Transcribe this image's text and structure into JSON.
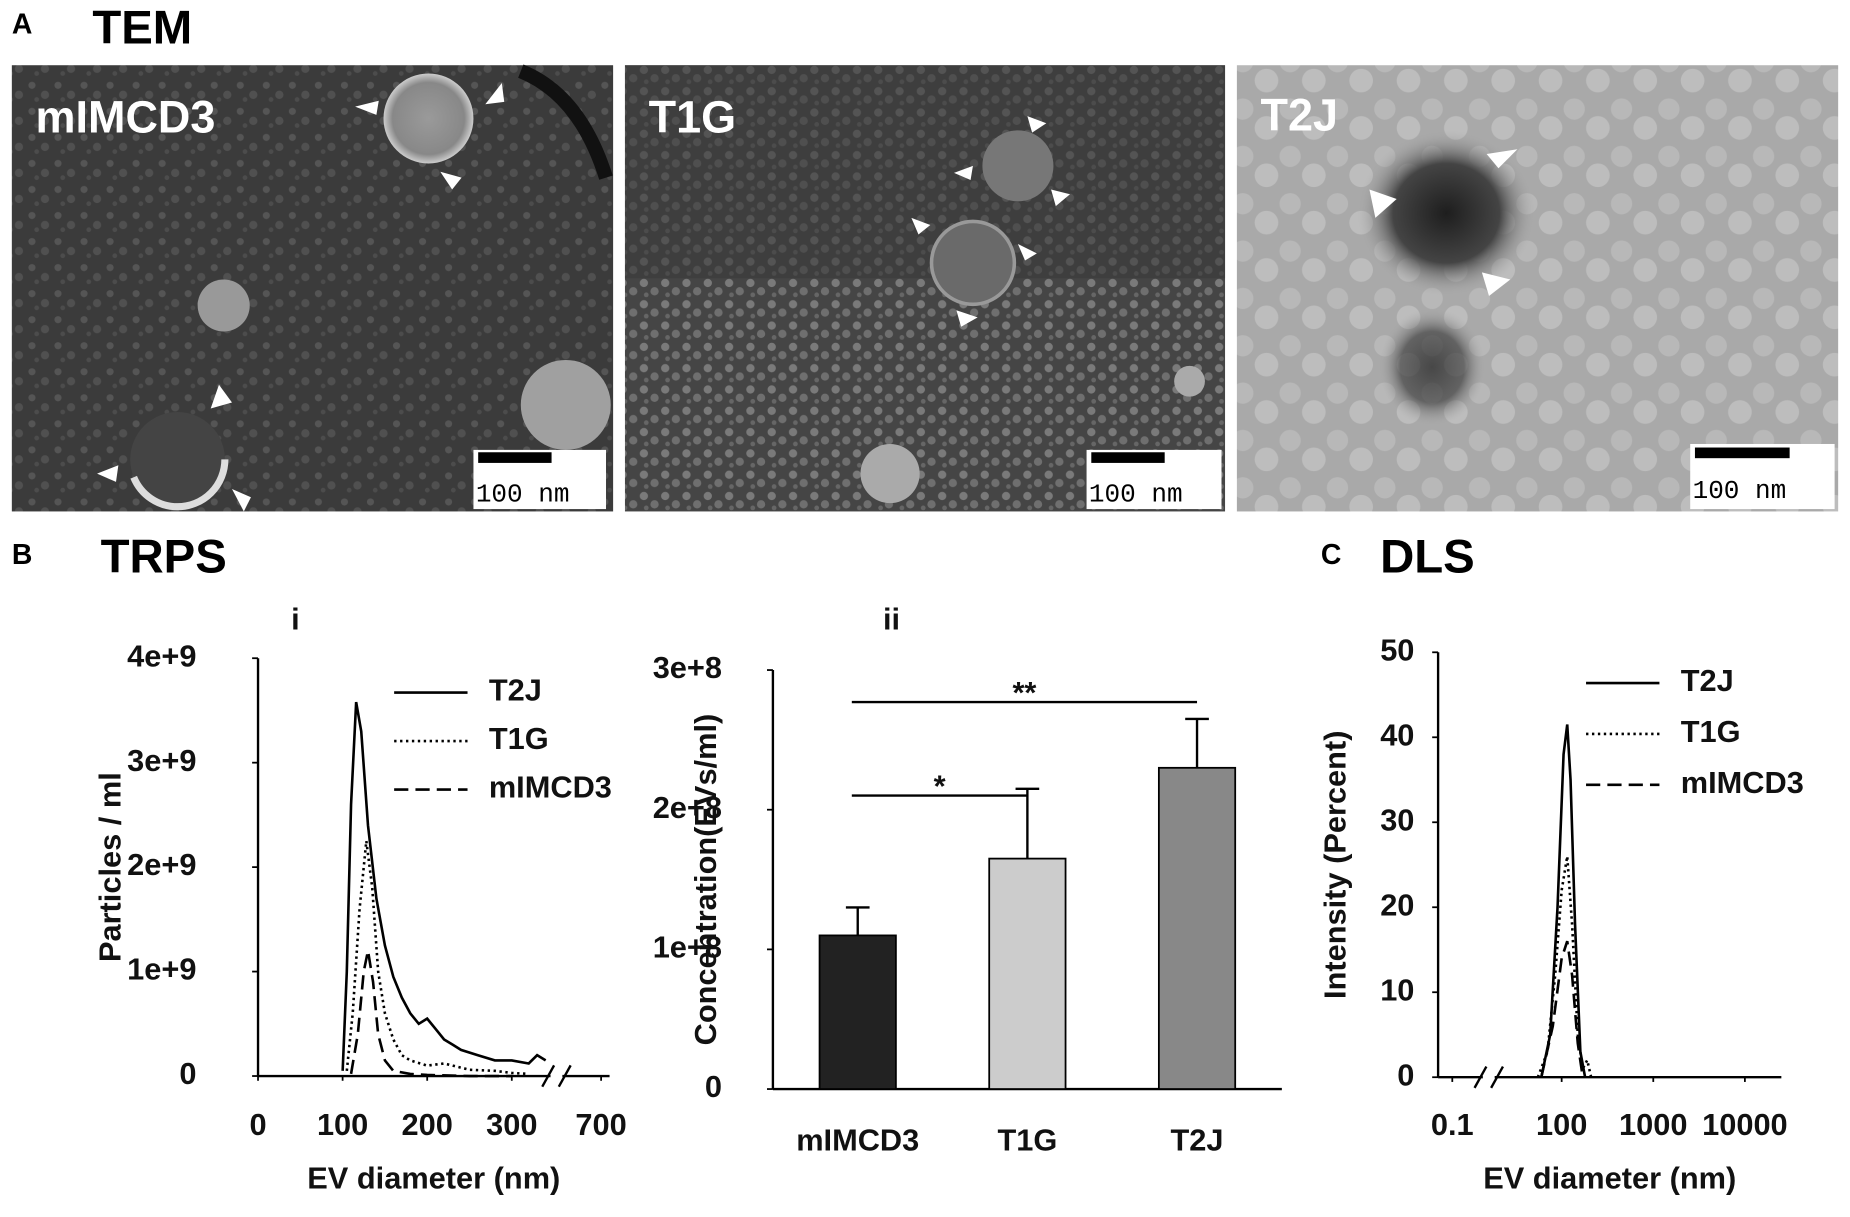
{
  "panels": {
    "a": {
      "letter": "A",
      "title": "TEM",
      "images": [
        {
          "label": "mIMCD3",
          "scale_bar": "100 nm"
        },
        {
          "label": "T1G",
          "scale_bar": "100 nm"
        },
        {
          "label": "T2J",
          "scale_bar": "100 nm"
        }
      ]
    },
    "b": {
      "letter": "B",
      "title": "TRPS"
    },
    "c": {
      "letter": "C",
      "title": "DLS"
    }
  },
  "chart_data": [
    {
      "type": "line",
      "label": "i",
      "x_label": "EV diameter (nm)",
      "y_label": "Particles / ml",
      "xlim": [
        0,
        710
      ],
      "x_break": [
        350,
        650
      ],
      "xticks": [
        0,
        100,
        200,
        300,
        700
      ],
      "ylim": [
        0,
        4000000000.0
      ],
      "yticks": [
        0,
        {
          "value": 1000000000.0,
          "label": "1e+9"
        },
        {
          "value": 2000000000.0,
          "label": "2e+9"
        },
        {
          "value": 3000000000.0,
          "label": "3e+9"
        },
        {
          "value": 4000000000.0,
          "label": "4e+9"
        }
      ],
      "legend": "upper right",
      "series": [
        {
          "name": "T2J",
          "color": "#000000",
          "dash": "solid",
          "x": [
            100,
            105,
            110,
            116,
            122,
            130,
            140,
            150,
            160,
            170,
            180,
            190,
            200,
            210,
            220,
            230,
            240,
            260,
            280,
            300,
            320,
            330,
            340
          ],
          "values": [
            50000000.0,
            1000000000.0,
            2600000000.0,
            3580000000.0,
            3300000000.0,
            2400000000.0,
            1700000000.0,
            1250000000.0,
            950000000.0,
            750000000.0,
            600000000.0,
            500000000.0,
            550000000.0,
            450000000.0,
            350000000.0,
            300000000.0,
            250000000.0,
            200000000.0,
            150000000.0,
            150000000.0,
            120000000.0,
            200000000.0,
            150000000.0
          ]
        },
        {
          "name": "T1G",
          "color": "#000000",
          "dash": "dotted",
          "x": [
            105,
            112,
            120,
            128,
            135,
            142,
            150,
            160,
            170,
            180,
            200,
            220,
            250,
            280,
            300,
            320
          ],
          "values": [
            50000000.0,
            600000000.0,
            1600000000.0,
            2250000000.0,
            1800000000.0,
            1000000000.0,
            600000000.0,
            350000000.0,
            200000000.0,
            150000000.0,
            100000000.0,
            120000000.0,
            60000000.0,
            50000000.0,
            30000000.0,
            20000000.0
          ]
        },
        {
          "name": "mIMCD3",
          "color": "#000000",
          "dash": "dashed",
          "x": [
            110,
            118,
            125,
            130,
            136,
            142,
            150,
            160,
            180,
            200,
            250,
            300
          ],
          "values": [
            20000000.0,
            400000000.0,
            1000000000.0,
            1200000000.0,
            900000000.0,
            400000000.0,
            150000000.0,
            50000000.0,
            20000000.0,
            10000000.0,
            0,
            0
          ]
        }
      ]
    },
    {
      "type": "bar",
      "label": "ii",
      "y_label": "Concentration(EVs/ml)",
      "categories": [
        "mIMCD3",
        "T1G",
        "T2J"
      ],
      "values": [
        110000000.0,
        165000000.0,
        230000000.0
      ],
      "errors": [
        20000000.0,
        50000000.0,
        35000000.0
      ],
      "colors": [
        "#222222",
        "#cccccc",
        "#888888"
      ],
      "ylim": [
        0,
        300000000.0
      ],
      "yticks": [
        0,
        {
          "value": 100000000.0,
          "label": "1e+8"
        },
        {
          "value": 200000000.0,
          "label": "2e+8"
        },
        {
          "value": 300000000.0,
          "label": "3e+8"
        }
      ],
      "annotations": [
        "**",
        "*"
      ]
    },
    {
      "type": "line",
      "x_label": "EV diameter (nm)",
      "y_label": "Intensity (Percent)",
      "log_x": true,
      "xlim": [
        0.07,
        25000
      ],
      "x_break": [
        0.2,
        20
      ],
      "xticks": [
        0.1,
        100,
        1000,
        10000
      ],
      "ylim": [
        0,
        50
      ],
      "yticks": [
        0,
        10,
        20,
        30,
        40,
        50
      ],
      "legend": "upper right",
      "series": [
        {
          "name": "T2J",
          "color": "#000000",
          "dash": "solid",
          "x": [
            60,
            75,
            90,
            105,
            115,
            125,
            140,
            160,
            180
          ],
          "values": [
            0,
            5,
            20,
            38,
            41.5,
            35,
            18,
            3,
            0
          ]
        },
        {
          "name": "T1G",
          "color": "#000000",
          "dash": "dotted",
          "x": [
            55,
            70,
            85,
            100,
            115,
            130,
            150,
            170,
            190,
            210
          ],
          "values": [
            0,
            3,
            12,
            22,
            26,
            18,
            5,
            1,
            2,
            0
          ]
        },
        {
          "name": "mIMCD3",
          "color": "#000000",
          "dash": "dashed",
          "x": [
            60,
            80,
            100,
            115,
            130,
            150,
            170
          ],
          "values": [
            0,
            6,
            14,
            16,
            12,
            4,
            0
          ]
        }
      ]
    }
  ]
}
